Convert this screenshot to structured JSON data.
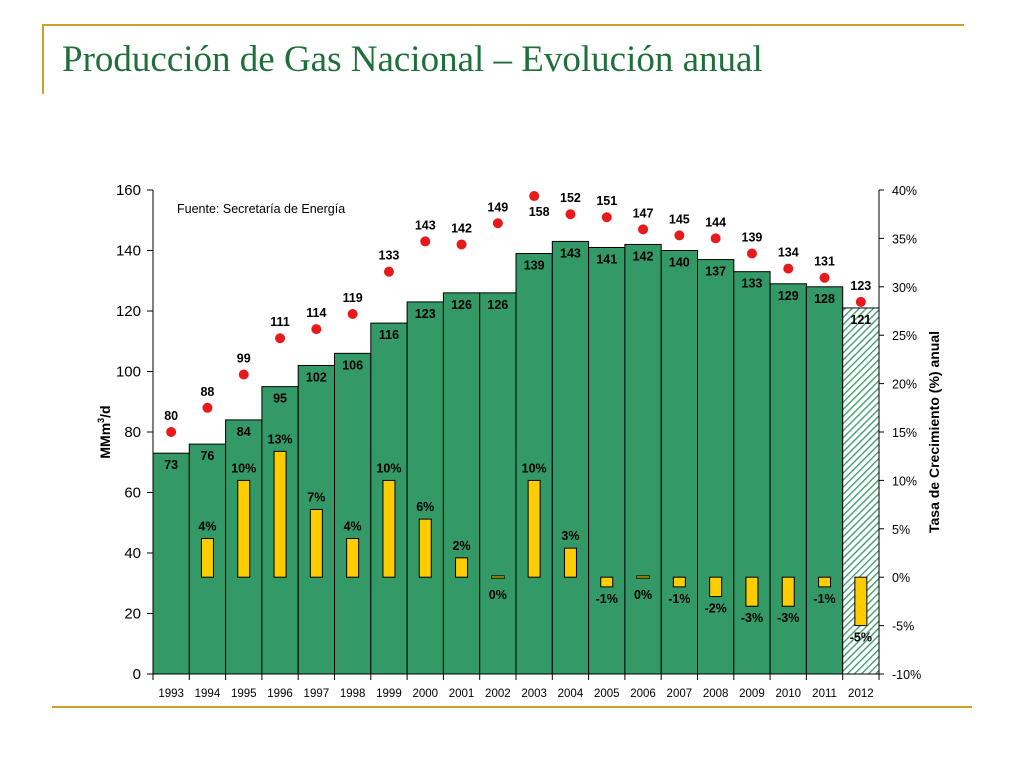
{
  "slide": {
    "title": "Producción de Gas Nacional – Evolución anual"
  },
  "colors": {
    "accent_gold": "#c9a227",
    "title_green": "#1f6f3a",
    "bar_green": "#339966",
    "growth_yellow": "#ffcc00",
    "growth_zero": "#808000",
    "dot_red": "#e8191b"
  },
  "chart_data": {
    "type": "bar",
    "title": "",
    "source_note": "Fuente: Secretaría de Energía",
    "ylabel": "MMm3/d",
    "ylabel_main": "MMm",
    "ylabel_sup": "3",
    "ylabel_tail": "/d",
    "y2label": "Tasa de Crecimiento (%) anual",
    "ylim": [
      0,
      160
    ],
    "y_ticks": [
      "0",
      "20",
      "40",
      "60",
      "80",
      "100",
      "120",
      "140",
      "160"
    ],
    "y2lim": [
      -10,
      40
    ],
    "y2_ticks": [
      "-10%",
      "-5%",
      "0%",
      "5%",
      "10%",
      "15%",
      "20%",
      "25%",
      "30%",
      "35%",
      "40%"
    ],
    "categories": [
      "1993",
      "1994",
      "1995",
      "1996",
      "1997",
      "1998",
      "1999",
      "2000",
      "2001",
      "2002",
      "2003",
      "2004",
      "2005",
      "2006",
      "2007",
      "2008",
      "2009",
      "2010",
      "2011",
      "2012"
    ],
    "series": [
      {
        "values": [
          73,
          76,
          84,
          95,
          102,
          106,
          116,
          123,
          126,
          126,
          139,
          143,
          141,
          142,
          140,
          137,
          133,
          129,
          128,
          121
        ],
        "labels": [
          "73",
          "76",
          "84",
          "95",
          "102",
          "106",
          "116",
          "123",
          "126",
          "126",
          "139",
          "143",
          "141",
          "142",
          "140",
          "137",
          "133",
          "129",
          "128",
          "121"
        ],
        "estimated_last": true
      },
      {
        "axis": "right",
        "values": [
          null,
          4,
          10,
          13,
          7,
          4,
          10,
          6,
          2,
          0,
          10,
          3,
          -1,
          0,
          -1,
          -2,
          -3,
          -3,
          -1,
          -5
        ],
        "labels": [
          "",
          "4%",
          "10%",
          "13%",
          "7%",
          "4%",
          "10%",
          "6%",
          "2%",
          "0%",
          "10%",
          "3%",
          "-1%",
          "0%",
          "-1%",
          "-2%",
          "-3%",
          "-3%",
          "-1%",
          "-5%"
        ]
      },
      {
        "values": [
          80,
          88,
          99,
          111,
          114,
          119,
          133,
          143,
          142,
          149,
          158,
          152,
          151,
          147,
          145,
          144,
          139,
          134,
          131,
          123
        ],
        "labels": [
          "80",
          "88",
          "99",
          "111",
          "114",
          "119",
          "133",
          "143",
          "142",
          "149",
          "158",
          "152",
          "151",
          "147",
          "145",
          "144",
          "139",
          "134",
          "131",
          "123"
        ]
      }
    ],
    "grid": false,
    "legend": "none"
  }
}
